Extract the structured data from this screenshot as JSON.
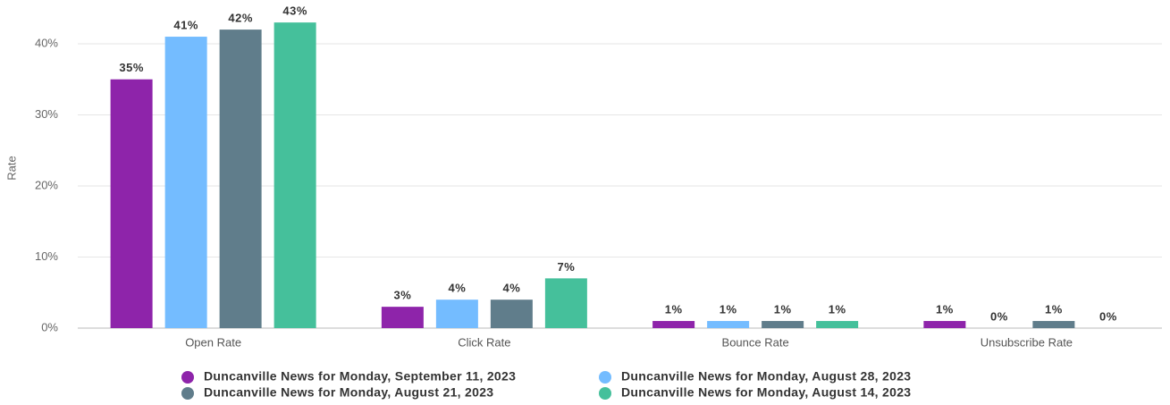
{
  "chart_data": {
    "type": "bar",
    "y_label": "Rate",
    "categories": [
      "Open Rate",
      "Click Rate",
      "Bounce Rate",
      "Unsubscribe Rate"
    ],
    "series": [
      {
        "name": "Duncanville News for Monday, September 11, 2023",
        "color": "#8e24aa",
        "values": [
          35,
          3,
          1,
          1
        ],
        "value_labels": [
          "35%",
          "3%",
          "1%",
          "1%"
        ]
      },
      {
        "name": "Duncanville News for Monday, August 28, 2023",
        "color": "#74bcff",
        "values": [
          41,
          4,
          1,
          0
        ],
        "value_labels": [
          "41%",
          "4%",
          "1%",
          "0%"
        ]
      },
      {
        "name": "Duncanville News for Monday, August 21, 2023",
        "color": "#607d8b",
        "values": [
          42,
          4,
          1,
          1
        ],
        "value_labels": [
          "42%",
          "4%",
          "1%",
          "1%"
        ]
      },
      {
        "name": "Duncanville News for Monday, August 14, 2023",
        "color": "#45c09b",
        "values": [
          43,
          7,
          1,
          0
        ],
        "value_labels": [
          "43%",
          "7%",
          "1%",
          "0%"
        ]
      }
    ],
    "ylim": [
      0,
      40
    ],
    "yticks": [
      {
        "value": 0,
        "label": "0%"
      },
      {
        "value": 10,
        "label": "10%"
      },
      {
        "value": 20,
        "label": "20%"
      },
      {
        "value": 30,
        "label": "30%"
      },
      {
        "value": 40,
        "label": "40%"
      }
    ],
    "grid": true,
    "legend": "bottom"
  }
}
